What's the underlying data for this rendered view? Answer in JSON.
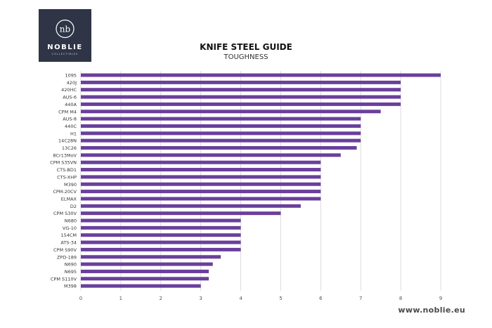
{
  "brand": {
    "name": "NOBLIE",
    "tagline": "COLLECTIBLES",
    "monogram": "nb",
    "website": "www.noblie.eu",
    "logo_bg": "#2f3547"
  },
  "chart_data": {
    "type": "bar",
    "orientation": "horizontal",
    "title": "KNIFE STEEL GUIDE",
    "subtitle": "TOUGHNESS",
    "xlabel": "",
    "ylabel": "",
    "xlim": [
      0,
      9
    ],
    "xticks": [
      "0",
      "1",
      "2",
      "3",
      "4",
      "5",
      "6",
      "7",
      "8",
      "9"
    ],
    "grid": "vertical",
    "bar_color": "#6a3f9c",
    "categories": [
      "1095",
      "420J",
      "420HC",
      "AUS-6",
      "440A",
      "CPM M4",
      "AUS-8",
      "440C",
      "H1",
      "14C28N",
      "13C26",
      "8Cr13MoV",
      "CPM S35VN",
      "CTS-BD1",
      "CTS-XHP",
      "M390",
      "CPM-20CV",
      "ELMAX",
      "D2",
      "CPM S30V",
      "N680",
      "VG-10",
      "154CM",
      "ATS-34",
      "CPM S90V",
      "ZPD-189",
      "N690",
      "N695",
      "CPM S110V",
      "M398"
    ],
    "values": [
      9,
      8,
      8,
      8,
      8,
      7.5,
      7,
      7,
      7,
      7,
      6.9,
      6.5,
      6,
      6,
      6,
      6,
      6,
      6,
      5.5,
      5,
      4,
      4,
      4,
      4,
      4,
      3.5,
      3.3,
      3.2,
      3.2,
      3
    ]
  }
}
